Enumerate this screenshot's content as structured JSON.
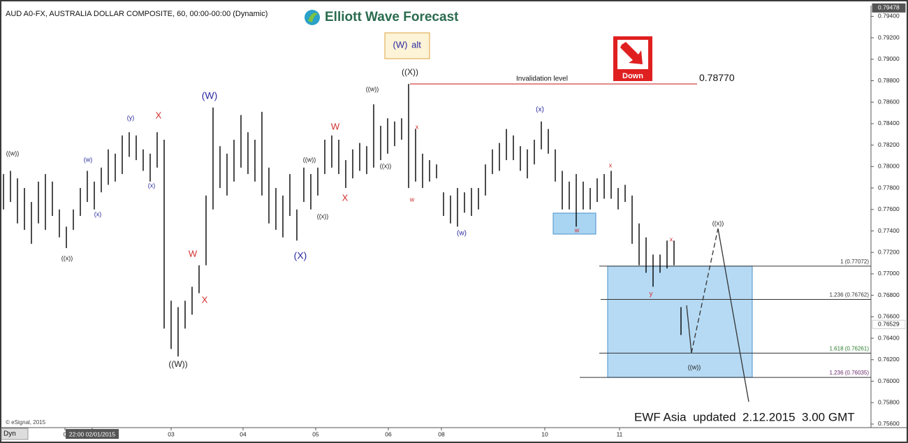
{
  "chart_data": {
    "type": "ohlc",
    "title": "AUD A0-FX, AUSTRALIA DOLLAR COMPOSITE, 60, 00:00-00:00 (Dynamic)",
    "brand": "Elliott Wave Forecast",
    "alt_box": {
      "wave": "(W)",
      "text": "alt"
    },
    "badge": "Down",
    "footer": "EWF Asia  updated  2.12.2015  3.00 GMT",
    "copyright": "© eSignal, 2015",
    "corner_label": "Dyn",
    "color": "#000000",
    "high": [
      0.7793,
      0.7796,
      0.7789,
      0.778,
      0.7767,
      0.7786,
      0.7793,
      0.7786,
      0.776,
      0.7744,
      0.776,
      0.778,
      0.7796,
      0.7786,
      0.7799,
      0.7816,
      0.7812,
      0.7829,
      0.7832,
      0.7829,
      0.7816,
      0.7812,
      0.7832,
      0.7825,
      0.7675,
      0.7669,
      0.7675,
      0.7688,
      0.7708,
      0.7773,
      0.7855,
      0.7819,
      0.7812,
      0.7825,
      0.7848,
      0.7832,
      0.7825,
      0.7851,
      0.7799,
      0.778,
      0.7773,
      0.7793,
      0.776,
      0.7799,
      0.7793,
      0.7799,
      0.7825,
      0.7829,
      0.7825,
      0.7806,
      0.7816,
      0.7822,
      0.7819,
      0.7858,
      0.7838,
      0.7845,
      0.7842,
      0.7845,
      0.7877,
      0.7835,
      0.7812,
      0.7806,
      0.7802,
      0.7776,
      0.7773,
      0.778,
      0.7776,
      0.778,
      0.778,
      0.7802,
      0.7816,
      0.7822,
      0.7835,
      0.7829,
      0.7819,
      0.7816,
      0.7825,
      0.7842,
      0.7835,
      0.7816,
      0.7796,
      0.7786,
      0.7793,
      0.7786,
      0.778,
      0.7789,
      0.7793,
      0.7796,
      0.778,
      0.7783,
      0.7773,
      0.7747,
      0.7734,
      0.7718,
      0.7718,
      0.7731,
      0.7731,
      0.7669
    ],
    "low": [
      0.776,
      0.7767,
      0.7747,
      0.7741,
      0.7728,
      0.7747,
      0.7741,
      0.7754,
      0.7734,
      0.7724,
      0.7741,
      0.7754,
      0.7767,
      0.776,
      0.7776,
      0.7783,
      0.7786,
      0.7793,
      0.7809,
      0.7806,
      0.7796,
      0.7786,
      0.7799,
      0.7649,
      0.763,
      0.7623,
      0.7649,
      0.7662,
      0.7682,
      0.7708,
      0.776,
      0.778,
      0.7773,
      0.7786,
      0.7799,
      0.7793,
      0.7786,
      0.7773,
      0.7747,
      0.7741,
      0.7734,
      0.7754,
      0.7731,
      0.7767,
      0.776,
      0.7773,
      0.7793,
      0.7799,
      0.7793,
      0.778,
      0.7789,
      0.7796,
      0.7793,
      0.7799,
      0.7806,
      0.7812,
      0.7819,
      0.7825,
      0.778,
      0.7786,
      0.778,
      0.7786,
      0.7789,
      0.7754,
      0.7747,
      0.7744,
      0.7757,
      0.7754,
      0.776,
      0.7773,
      0.7793,
      0.7796,
      0.7806,
      0.7806,
      0.7796,
      0.7789,
      0.7802,
      0.7816,
      0.7812,
      0.7786,
      0.776,
      0.776,
      0.7744,
      0.776,
      0.776,
      0.7767,
      0.777,
      0.777,
      0.776,
      0.7767,
      0.7728,
      0.7708,
      0.7701,
      0.7688,
      0.7701,
      0.7705,
      0.7708,
      0.7643
    ],
    "xlim": [
      -0.3,
      124
    ],
    "xticks": [
      {
        "value": 8.8,
        "label": "0"
      },
      {
        "value": 12.7,
        "label": "22:00 02/01/2015"
      },
      {
        "value": 24,
        "label": "03"
      },
      {
        "value": 34.3,
        "label": "04"
      },
      {
        "value": 44.7,
        "label": "05"
      },
      {
        "value": 55.1,
        "label": "06"
      },
      {
        "value": 62.7,
        "label": "08"
      },
      {
        "value": 77.5,
        "label": "10"
      },
      {
        "value": 88.2,
        "label": "11"
      }
    ],
    "ylim": [
      0.75567,
      0.795
    ],
    "yticks": [
      {
        "value": 0.756,
        "label": "0.75600"
      },
      {
        "value": 0.758,
        "label": "0.75800"
      },
      {
        "value": 0.76,
        "label": "0.76000"
      },
      {
        "value": 0.762,
        "label": "0.76200"
      },
      {
        "value": 0.764,
        "label": "0.76400"
      },
      {
        "value": 0.766,
        "label": "0.76600"
      },
      {
        "value": 0.768,
        "label": "0.76800"
      },
      {
        "value": 0.77,
        "label": "0.77000"
      },
      {
        "value": 0.772,
        "label": "0.77200"
      },
      {
        "value": 0.774,
        "label": "0.77400"
      },
      {
        "value": 0.776,
        "label": "0.77600"
      },
      {
        "value": 0.778,
        "label": "0.77800"
      },
      {
        "value": 0.78,
        "label": "0.78000"
      },
      {
        "value": 0.782,
        "label": "0.78200"
      },
      {
        "value": 0.784,
        "label": "0.78400"
      },
      {
        "value": 0.786,
        "label": "0.78600"
      },
      {
        "value": 0.788,
        "label": "0.78800"
      },
      {
        "value": 0.79,
        "label": "0.79000"
      },
      {
        "value": 0.792,
        "label": "0.79200"
      },
      {
        "value": 0.794,
        "label": "0.79400"
      }
    ],
    "price_markers": [
      {
        "value": 0.79478,
        "label": "0.79478"
      },
      {
        "value": 0.76529,
        "label": "0.76529"
      }
    ],
    "invalidation": {
      "value": 0.7877,
      "label": "0.78770",
      "text": "Invalidation level",
      "color": "#d04040"
    },
    "levels": [
      {
        "value": 0.77072,
        "label": "1 (0.77072)",
        "color": "#333333"
      },
      {
        "value": 0.76762,
        "label": "1.236 (0.76762)",
        "color": "#333333"
      },
      {
        "value": 0.76261,
        "label": "1.618 (0.76261)",
        "color": "#2a7a2a"
      },
      {
        "value": 0.76035,
        "label": "1.236 (0.76035)",
        "color": "#6a2a6a"
      }
    ],
    "wave_labels": [
      {
        "text": "((w))",
        "color": "#222222"
      },
      {
        "text": "((x))",
        "color": "#222222"
      },
      {
        "text": "(w)",
        "color": "#2a2aa0"
      },
      {
        "text": "(x)",
        "color": "#2a2aa0"
      },
      {
        "text": "(y)",
        "color": "#2a2aa0"
      },
      {
        "text": "X",
        "color": "#d03030"
      },
      {
        "text": "(x)",
        "color": "#2a2aa0"
      },
      {
        "text": "((W))",
        "color": "#222222"
      },
      {
        "text": "W",
        "color": "#d03030"
      },
      {
        "text": "X",
        "color": "#d03030"
      },
      {
        "text": "(W)",
        "color": "#2a2aa0"
      },
      {
        "text": "((w))",
        "color": "#222222"
      },
      {
        "text": "((x))",
        "color": "#222222"
      },
      {
        "text": "(X)",
        "color": "#2a2aa0"
      },
      {
        "text": "W",
        "color": "#d03030"
      },
      {
        "text": "X",
        "color": "#d03030"
      },
      {
        "text": "((w))",
        "color": "#222222"
      },
      {
        "text": "((x))",
        "color": "#222222"
      },
      {
        "text": "((X))",
        "color": "#222222"
      },
      {
        "text": "x",
        "color": "#d03030"
      },
      {
        "text": "w",
        "color": "#d03030"
      },
      {
        "text": "(w)",
        "color": "#2a2aa0"
      },
      {
        "text": "(x)",
        "color": "#2a2aa0"
      },
      {
        "text": "w",
        "color": "#d03030"
      },
      {
        "text": "x",
        "color": "#d03030"
      },
      {
        "text": "x",
        "color": "#d03030"
      },
      {
        "text": "y",
        "color": "#d03030"
      },
      {
        "text": "((w))",
        "color": "#222222"
      },
      {
        "text": "((x))",
        "color": "#222222"
      }
    ]
  }
}
